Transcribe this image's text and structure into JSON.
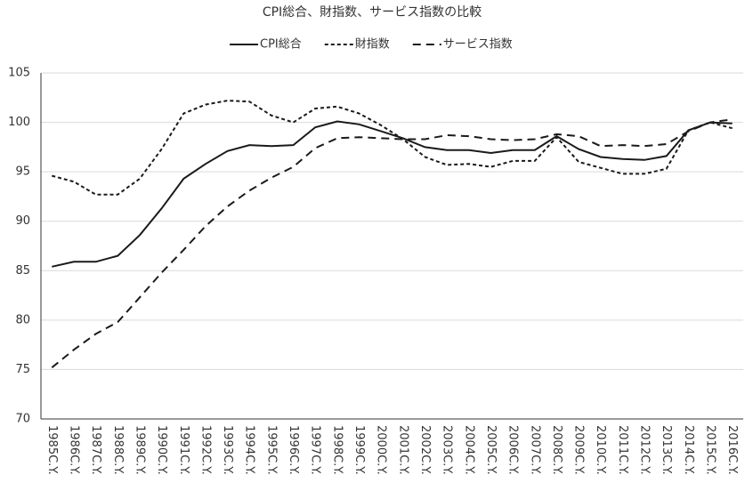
{
  "chart_data": {
    "type": "line",
    "title": "CPI総合、財指数、サービス指数の比較",
    "categories": [
      "1985C.Y.",
      "1986C.Y.",
      "1987C.Y.",
      "1988C.Y.",
      "1989C.Y.",
      "1990C.Y.",
      "1991C.Y.",
      "1992C.Y.",
      "1993C.Y.",
      "1994C.Y.",
      "1995C.Y.",
      "1996C.Y.",
      "1997C.Y.",
      "1998C.Y.",
      "1999C.Y.",
      "2000C.Y.",
      "2001C.Y.",
      "2002C.Y.",
      "2003C.Y.",
      "2004C.Y.",
      "2005C.Y.",
      "2006C.Y.",
      "2007C.Y.",
      "2008C.Y.",
      "2009C.Y.",
      "2010C.Y.",
      "2011C.Y.",
      "2012C.Y.",
      "2013C.Y.",
      "2014C.Y.",
      "2015C.Y.",
      "2016C.Y."
    ],
    "series": [
      {
        "name": "CPI総合",
        "color": "#1a1a1a",
        "line_style": "solid",
        "values": [
          85.4,
          85.9,
          85.9,
          86.5,
          88.6,
          91.3,
          94.3,
          95.8,
          97.1,
          97.7,
          97.6,
          97.7,
          99.5,
          100.1,
          99.8,
          99.1,
          98.4,
          97.5,
          97.2,
          97.2,
          96.9,
          97.2,
          97.2,
          98.6,
          97.3,
          96.5,
          96.3,
          96.2,
          96.6,
          99.2,
          100.0,
          99.9
        ]
      },
      {
        "name": "財指数",
        "color": "#1a1a1a",
        "line_style": "short-dash",
        "values": [
          94.6,
          94.0,
          92.7,
          92.7,
          94.3,
          97.3,
          100.9,
          101.8,
          102.2,
          102.1,
          100.7,
          100.0,
          101.4,
          101.6,
          100.9,
          99.7,
          98.3,
          96.5,
          95.7,
          95.8,
          95.5,
          96.1,
          96.1,
          98.5,
          96.0,
          95.4,
          94.8,
          94.8,
          95.3,
          99.2,
          100.0,
          99.4
        ]
      },
      {
        "name": "サービス指数",
        "color": "#1a1a1a",
        "line_style": "long-dash",
        "values": [
          75.2,
          77.0,
          78.6,
          79.8,
          82.3,
          84.8,
          87.1,
          89.5,
          91.5,
          93.1,
          94.4,
          95.5,
          97.4,
          98.4,
          98.5,
          98.4,
          98.3,
          98.3,
          98.7,
          98.6,
          98.3,
          98.2,
          98.3,
          98.8,
          98.6,
          97.6,
          97.7,
          97.6,
          97.8,
          99.1,
          100.0,
          100.3
        ]
      }
    ],
    "ylim": [
      70,
      105
    ],
    "yticks": [
      70,
      75,
      80,
      85,
      90,
      95,
      100,
      105
    ],
    "grid": true,
    "legend": "top"
  }
}
